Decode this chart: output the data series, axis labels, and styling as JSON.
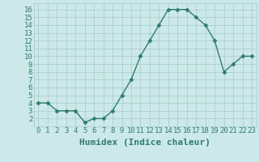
{
  "x": [
    0,
    1,
    2,
    3,
    4,
    5,
    6,
    7,
    8,
    9,
    10,
    11,
    12,
    13,
    14,
    15,
    16,
    17,
    18,
    19,
    20,
    21,
    22,
    23
  ],
  "y": [
    4,
    4,
    3,
    3,
    3,
    1.5,
    2,
    2,
    3,
    5,
    7,
    10,
    12,
    14,
    16,
    16,
    16,
    15,
    14,
    12,
    8,
    9,
    10,
    10
  ],
  "line_color": "#2e7d6e",
  "marker_color": "#2e7d6e",
  "bg_color": "#cce8e8",
  "grid_color": "#aacece",
  "xlabel": "Humidex (Indice chaleur)",
  "xlim": [
    -0.5,
    23.5
  ],
  "ylim": [
    1.0,
    16.8
  ],
  "yticks": [
    2,
    3,
    4,
    5,
    6,
    7,
    8,
    9,
    10,
    11,
    12,
    13,
    14,
    15,
    16
  ],
  "xtick_labels": [
    "0",
    "1",
    "2",
    "3",
    "4",
    "5",
    "6",
    "7",
    "8",
    "9",
    "10",
    "11",
    "12",
    "13",
    "14",
    "15",
    "16",
    "17",
    "18",
    "19",
    "20",
    "21",
    "22",
    "23"
  ],
  "xlabel_color": "#2e7d6e",
  "tick_color": "#2e7d6e",
  "font_size_xlabel": 8,
  "font_size_ticks": 6.5,
  "marker_size": 2.5,
  "line_width": 1.0
}
